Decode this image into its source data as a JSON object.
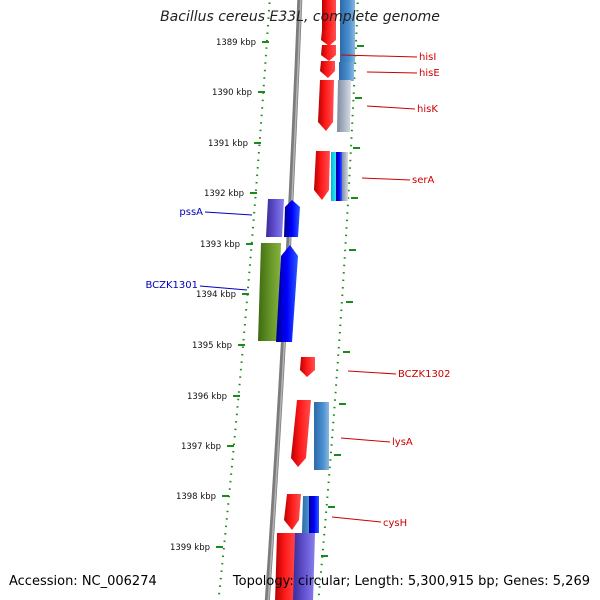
{
  "title": "Bacillus cereus E33L, complete genome",
  "accession": "Accession: NC_006274",
  "topology": "Topology: circular",
  "length": "Length: 5,300,915 bp",
  "genes": "Genes: 5,269",
  "colors": {
    "background": "#ffffff",
    "tick_green": "#1a8a1a",
    "backbone": "#8c8c8c",
    "plus_label": "#cc0000",
    "minus_label": "#0000bb",
    "gene_red": "#ff0000",
    "gene_blue": "#0000ff",
    "gene_steel": "#3a7dc0",
    "gene_green": "#5a8a1e",
    "gene_purple": "#5b4fc8",
    "gene_cyan": "#00d8e8",
    "gene_gray": "#b0b8c8"
  },
  "scale": {
    "unit": "kbp",
    "ticks": [
      {
        "label": "1389 kbp"
      },
      {
        "label": "1390 kbp"
      },
      {
        "label": "1391 kbp"
      },
      {
        "label": "1392 kbp"
      },
      {
        "label": "1393 kbp"
      },
      {
        "label": "1394 kbp"
      },
      {
        "label": "1395 kbp"
      },
      {
        "label": "1396 kbp"
      },
      {
        "label": "1397 kbp"
      },
      {
        "label": "1398 kbp"
      },
      {
        "label": "1399 kbp"
      }
    ]
  },
  "gene_labels": [
    {
      "name": "hisI",
      "strand": "plus"
    },
    {
      "name": "hisE",
      "strand": "plus"
    },
    {
      "name": "hisK",
      "strand": "plus"
    },
    {
      "name": "serA",
      "strand": "plus"
    },
    {
      "name": "pssA",
      "strand": "minus"
    },
    {
      "name": "BCZK1301",
      "strand": "minus"
    },
    {
      "name": "BCZK1302",
      "strand": "plus"
    },
    {
      "name": "lysA",
      "strand": "plus"
    },
    {
      "name": "cysH",
      "strand": "plus"
    }
  ]
}
